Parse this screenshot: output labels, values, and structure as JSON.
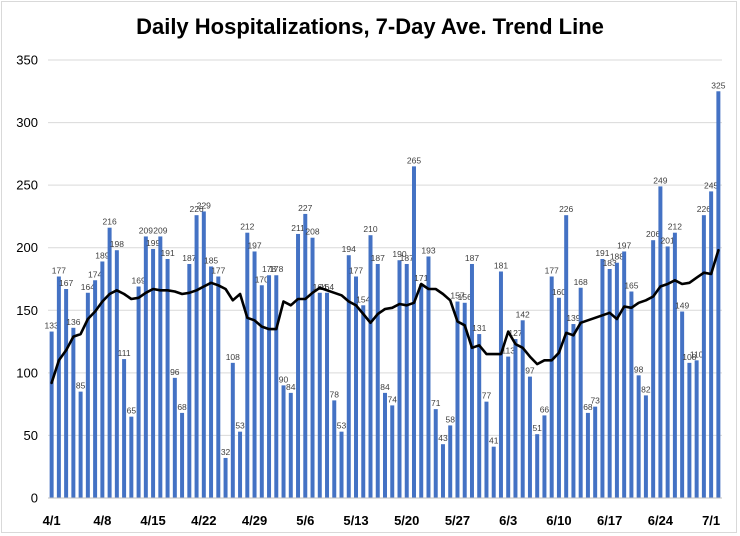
{
  "chart_data": {
    "type": "bar",
    "title": "Daily Hospitalizations, 7-Day Ave. Trend Line",
    "xlabel": "",
    "ylabel": "",
    "ylim": [
      0,
      350
    ],
    "yticks": [
      0,
      50,
      100,
      150,
      200,
      250,
      300,
      350
    ],
    "grid": true,
    "legend": "none",
    "x_tick_labels": [
      "4/1",
      "4/8",
      "4/15",
      "4/22",
      "4/29",
      "5/6",
      "5/13",
      "5/20",
      "5/27",
      "6/3",
      "6/10",
      "6/17",
      "6/24",
      "7/1"
    ],
    "x_tick_every_n_bars": 7,
    "series": [
      {
        "type": "bar",
        "color": "#4472c4",
        "values": [
          133,
          177,
          167,
          136,
          85,
          164,
          174,
          189,
          216,
          198,
          111,
          65,
          169,
          209,
          199,
          209,
          191,
          96,
          68,
          187,
          226,
          229,
          185,
          177,
          32,
          108,
          53,
          212,
          197,
          170,
          178,
          178,
          90,
          84,
          211,
          227,
          208,
          164,
          164,
          78,
          53,
          194,
          177,
          154,
          210,
          187,
          84,
          74,
          190,
          187,
          265,
          171,
          193,
          71,
          43,
          58,
          157,
          156,
          187,
          131,
          77,
          41,
          181,
          113,
          127,
          142,
          97,
          51,
          66,
          177,
          160,
          226,
          139,
          168,
          68,
          73,
          191,
          183,
          188,
          197,
          165,
          98,
          82,
          206,
          249,
          201,
          212,
          149,
          108,
          110,
          226,
          245,
          325
        ]
      },
      {
        "type": "line",
        "name": "7-Day Ave.",
        "color": "#000000",
        "values": [
          92,
          110,
          118,
          129,
          131,
          143,
          149,
          157,
          163,
          166,
          163,
          159,
          160,
          164,
          167,
          166,
          166,
          165,
          163,
          164,
          166,
          169,
          172,
          170,
          167,
          158,
          163,
          144,
          142,
          137,
          135,
          135,
          157,
          154,
          159,
          159,
          164,
          168,
          166,
          164,
          162,
          157,
          154,
          147,
          140,
          147,
          151,
          152,
          155,
          154,
          156,
          171,
          167,
          167,
          163,
          158,
          141,
          138,
          120,
          122,
          115,
          115,
          115,
          133,
          123,
          120,
          113,
          107,
          110,
          110,
          116,
          132,
          130,
          140,
          142,
          144,
          146,
          148,
          143,
          153,
          152,
          156,
          158,
          161,
          169,
          171,
          174,
          171,
          172,
          176,
          180,
          179,
          198
        ]
      }
    ]
  }
}
